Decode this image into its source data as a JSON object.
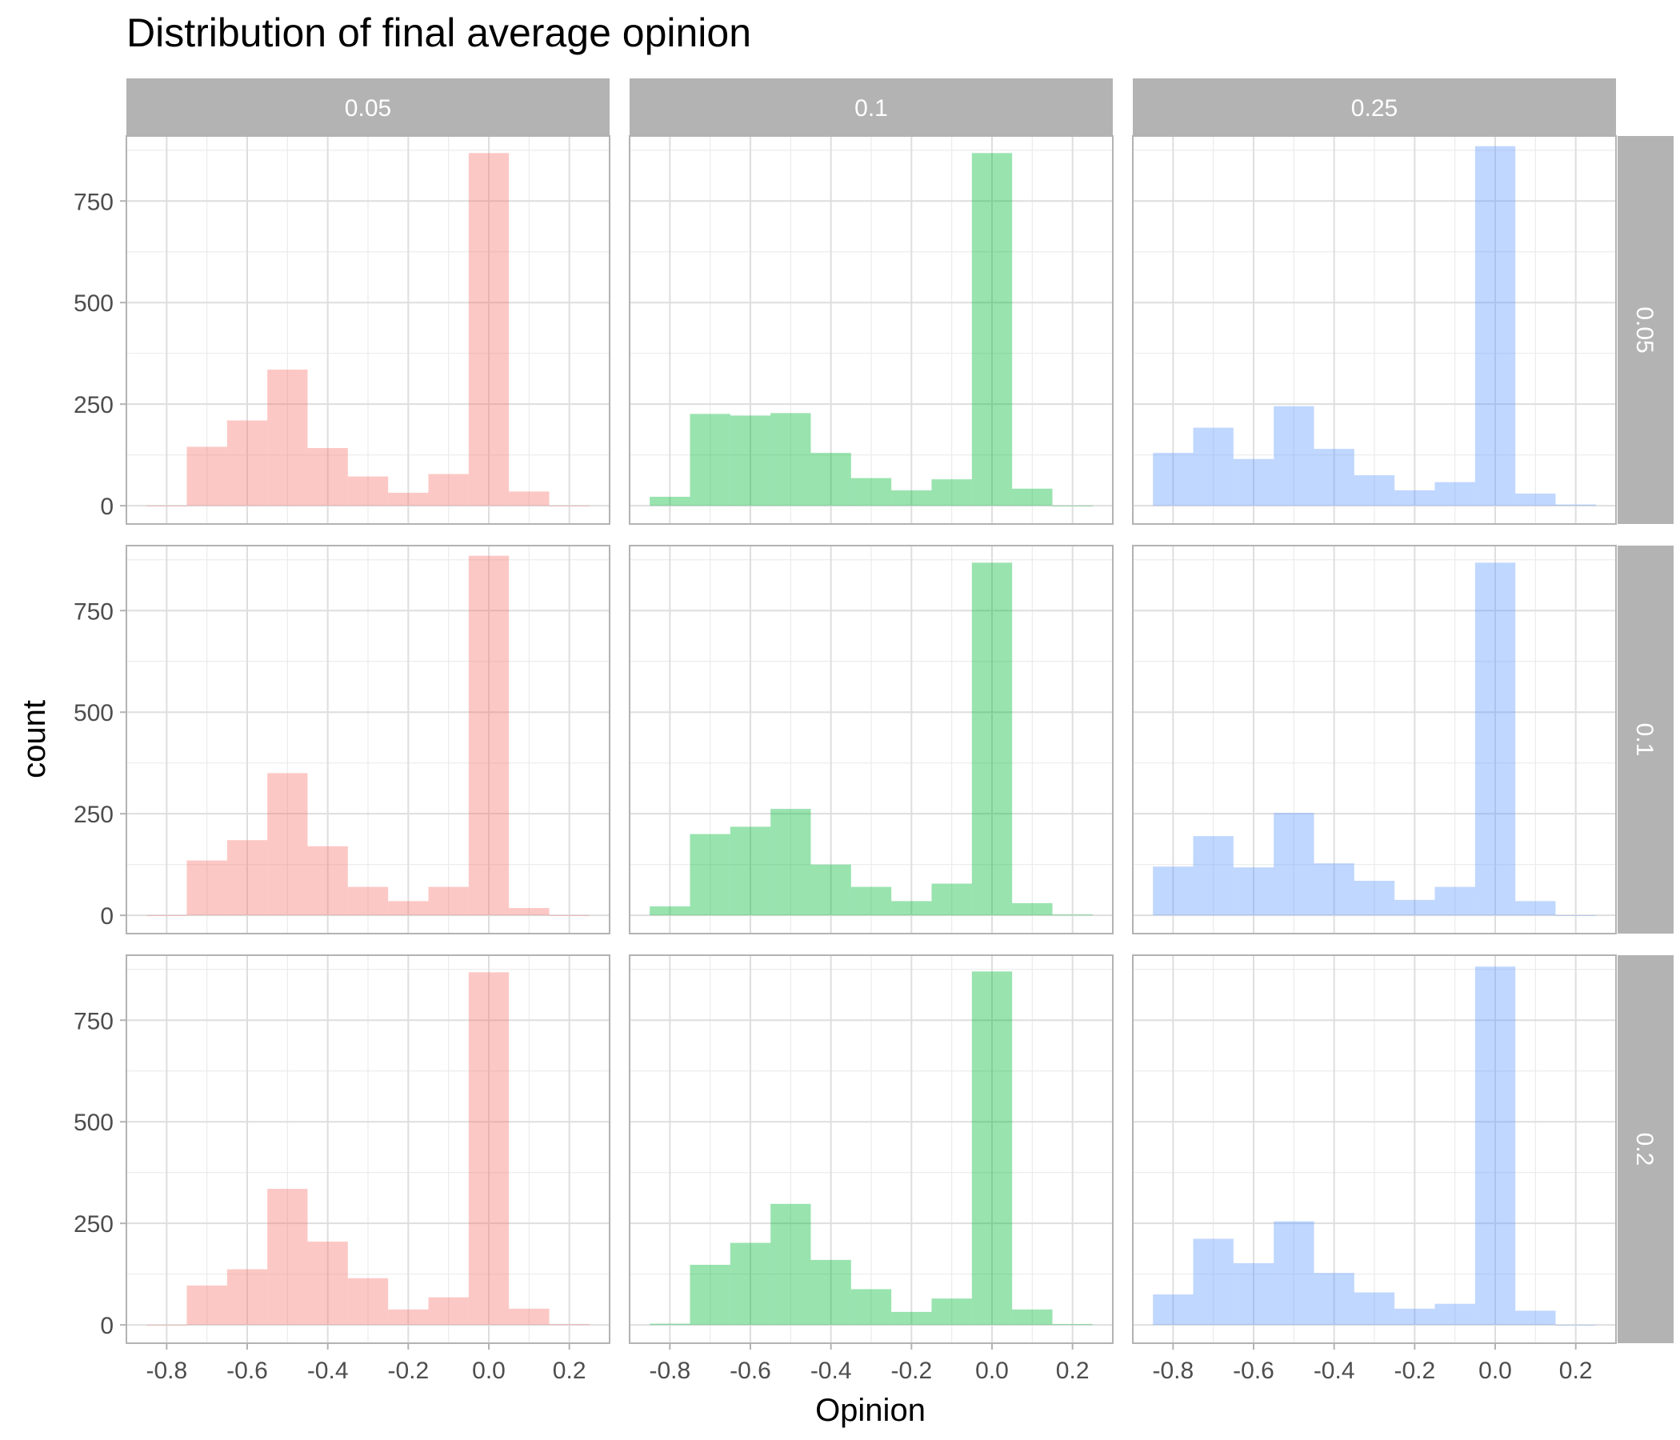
{
  "chart_data": {
    "type": "histogram",
    "title": "Distribution of final average opinion",
    "xlabel": "Opinion",
    "ylabel": "count",
    "xlim": [
      -0.9,
      0.3
    ],
    "ylim": [
      -45,
      910
    ],
    "x_ticks": [
      -0.8,
      -0.6,
      -0.4,
      -0.2,
      0.0,
      0.2
    ],
    "x_tick_labels": [
      "-0.8",
      "-0.6",
      "-0.4",
      "-0.2",
      "0.0",
      "0.2"
    ],
    "y_ticks": [
      0,
      250,
      500,
      750
    ],
    "y_tick_labels": [
      "0",
      "250",
      "500",
      "750"
    ],
    "bin_width": 0.1,
    "bin_edges": [
      -0.85,
      -0.75,
      -0.65,
      -0.55,
      -0.45,
      -0.35,
      -0.25,
      -0.15,
      -0.05,
      0.05,
      0.15,
      0.25
    ],
    "col_labels": [
      "0.05",
      "0.1",
      "0.25"
    ],
    "row_labels": [
      "0.05",
      "0.1",
      "0.2"
    ],
    "col_colors": [
      "#F8766D",
      "#00BA38",
      "#619CFF"
    ],
    "panels": [
      {
        "row": 0,
        "col": 0,
        "counts": [
          0,
          145,
          210,
          335,
          142,
          72,
          32,
          78,
          868,
          35,
          0
        ]
      },
      {
        "row": 0,
        "col": 1,
        "counts": [
          22,
          226,
          222,
          228,
          130,
          68,
          38,
          65,
          868,
          42,
          0
        ]
      },
      {
        "row": 0,
        "col": 2,
        "counts": [
          130,
          192,
          115,
          245,
          140,
          75,
          38,
          58,
          885,
          30,
          3
        ]
      },
      {
        "row": 1,
        "col": 0,
        "counts": [
          0,
          135,
          185,
          350,
          170,
          70,
          35,
          70,
          885,
          18,
          0
        ]
      },
      {
        "row": 1,
        "col": 1,
        "counts": [
          22,
          200,
          218,
          262,
          125,
          70,
          35,
          78,
          868,
          30,
          2
        ]
      },
      {
        "row": 1,
        "col": 2,
        "counts": [
          120,
          195,
          118,
          252,
          128,
          85,
          38,
          70,
          868,
          35,
          0
        ]
      },
      {
        "row": 2,
        "col": 0,
        "counts": [
          0,
          97,
          137,
          335,
          205,
          115,
          38,
          68,
          868,
          40,
          2
        ]
      },
      {
        "row": 2,
        "col": 1,
        "counts": [
          3,
          148,
          202,
          298,
          160,
          88,
          32,
          65,
          870,
          38,
          2
        ]
      },
      {
        "row": 2,
        "col": 2,
        "counts": [
          75,
          212,
          152,
          255,
          128,
          80,
          40,
          52,
          882,
          35,
          0
        ]
      }
    ]
  }
}
